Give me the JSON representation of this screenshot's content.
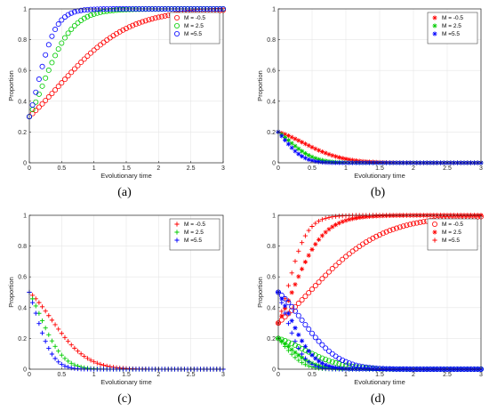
{
  "chart_data": [
    {
      "panel": "(a)",
      "type": "scatter",
      "marker": "circle",
      "xlabel": "Evolutionary time",
      "ylabel": "Proportion",
      "xlim": [
        0,
        3
      ],
      "ylim": [
        0,
        1
      ],
      "xticks": [
        "0",
        "0.5",
        "1",
        "1.5",
        "2",
        "2.5",
        "3"
      ],
      "yticks": [
        "0",
        "0.2",
        "0.4",
        "0.6",
        "0.8",
        "1"
      ],
      "grid": true,
      "legend_position": "top-right",
      "series": [
        {
          "name": "M = -0.5",
          "color": "#ff0000",
          "start": 0.3,
          "end": 1,
          "rate": 1.85
        },
        {
          "name": "M = 2.5",
          "color": "#00cc00",
          "start": 0.3,
          "end": 1,
          "rate": 4.2
        },
        {
          "name": "M =5.5",
          "color": "#0000ff",
          "start": 0.3,
          "end": 1,
          "rate": 6.8
        }
      ]
    },
    {
      "panel": "(b)",
      "type": "scatter",
      "marker": "star",
      "xlabel": "Evolutionary time",
      "ylabel": "Proportion",
      "xlim": [
        0,
        3
      ],
      "ylim": [
        0,
        1
      ],
      "xticks": [
        "0",
        "0.5",
        "1",
        "1.5",
        "2",
        "2.5",
        "3"
      ],
      "yticks": [
        "0",
        "0.2",
        "0.4",
        "0.6",
        "0.8",
        "1"
      ],
      "grid": true,
      "legend_position": "top-right",
      "series": [
        {
          "name": "M = -0.5",
          "color": "#ff0000",
          "start": 0.2,
          "end": 0,
          "rate": 1.6
        },
        {
          "name": "M = 2.5",
          "color": "#00cc00",
          "start": 0.2,
          "end": 0,
          "rate": 3.9
        },
        {
          "name": "M =5.5",
          "color": "#0000ff",
          "start": 0.2,
          "end": 0,
          "rate": 6.2
        }
      ]
    },
    {
      "panel": "(c)",
      "type": "scatter",
      "marker": "plus",
      "xlabel": "Evolutionary time",
      "ylabel": "Proportion",
      "xlim": [
        0,
        3
      ],
      "ylim": [
        0,
        1
      ],
      "xticks": [
        "0",
        "0.5",
        "1",
        "1.5",
        "2",
        "2.5",
        "3"
      ],
      "yticks": [
        "0",
        "0.2",
        "0.4",
        "0.6",
        "0.8",
        "1"
      ],
      "grid": true,
      "legend_position": "top-right",
      "series": [
        {
          "name": "M = -0.5",
          "color": "#ff0000",
          "start": 0.5,
          "end": 0,
          "rate": 1.8
        },
        {
          "name": "M = 2.5",
          "color": "#00cc00",
          "start": 0.5,
          "end": 0,
          "rate": 4.0
        },
        {
          "name": "M =5.5",
          "color": "#0000ff",
          "start": 0.5,
          "end": 0,
          "rate": 6.5
        }
      ]
    },
    {
      "panel": "(d)",
      "type": "scatter",
      "marker": "mixed",
      "xlabel": "Evolutionary time",
      "ylabel": "Proportion",
      "xlim": [
        0,
        3
      ],
      "ylim": [
        0,
        1
      ],
      "xticks": [
        "0",
        "0.5",
        "1",
        "1.5",
        "2",
        "2.5",
        "3"
      ],
      "yticks": [
        "0",
        "0.2",
        "0.4",
        "0.6",
        "0.8",
        "1"
      ],
      "grid": true,
      "legend_position": "top-right",
      "legend": [
        {
          "name": "M = -0.5",
          "color": "#ff0000",
          "marker": "circle"
        },
        {
          "name": "M = 2.5",
          "color": "#ff0000",
          "marker": "star"
        },
        {
          "name": "M =5.5",
          "color": "#ff0000",
          "marker": "plus"
        }
      ],
      "series": [
        {
          "color": "#ff0000",
          "marker": "circle",
          "start": 0.3,
          "end": 1,
          "rate": 1.85
        },
        {
          "color": "#ff0000",
          "marker": "star",
          "start": 0.3,
          "end": 1,
          "rate": 4.2
        },
        {
          "color": "#ff0000",
          "marker": "plus",
          "start": 0.3,
          "end": 1,
          "rate": 6.8
        },
        {
          "color": "#00cc00",
          "marker": "circle",
          "start": 0.2,
          "end": 0,
          "rate": 1.6
        },
        {
          "color": "#00cc00",
          "marker": "star",
          "start": 0.2,
          "end": 0,
          "rate": 3.9
        },
        {
          "color": "#00cc00",
          "marker": "plus",
          "start": 0.2,
          "end": 0,
          "rate": 6.2
        },
        {
          "color": "#0000ff",
          "marker": "circle",
          "start": 0.5,
          "end": 0,
          "rate": 1.8
        },
        {
          "color": "#0000ff",
          "marker": "star",
          "start": 0.5,
          "end": 0,
          "rate": 4.0
        },
        {
          "color": "#0000ff",
          "marker": "plus",
          "start": 0.5,
          "end": 0,
          "rate": 6.5
        }
      ]
    }
  ]
}
